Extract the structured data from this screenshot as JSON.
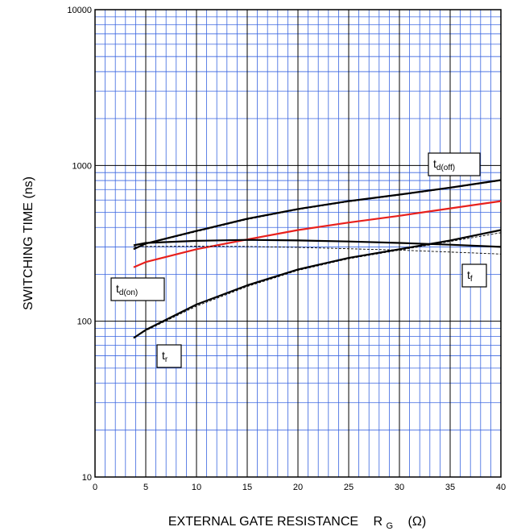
{
  "chart_data": {
    "type": "line",
    "xlabel": {
      "text": "EXTERNAL GATE RESISTANCE",
      "symbol": "R",
      "symbol_sub": "G",
      "unit": "(Ω)"
    },
    "ylabel": "SWITCHING TIME    (ns)",
    "xlim": [
      0,
      40
    ],
    "ylim": [
      10,
      10000
    ],
    "yscale": "log",
    "x_ticks": [
      "0",
      "5",
      "10",
      "15",
      "20",
      "25",
      "30",
      "35",
      "40"
    ],
    "y_ticks": [
      "10",
      "100",
      "1000",
      "10000"
    ],
    "grid": true,
    "colors": {
      "grid_minor": "#3a66e0",
      "grid_major": "#000000",
      "td_on": "#e8201c",
      "curve": "#000000"
    },
    "series": [
      {
        "name": "td(off)",
        "label_main": "t",
        "label_sub": "d(off)",
        "color": "#000000",
        "x": [
          3.8,
          5,
          10,
          15,
          20,
          25,
          30,
          35,
          40
        ],
        "y": [
          290,
          315,
          380,
          455,
          525,
          590,
          650,
          720,
          805
        ],
        "dashed_y": [
          290,
          313,
          376,
          450,
          520,
          585,
          645,
          715,
          800
        ]
      },
      {
        "name": "td(on)",
        "label_main": "t",
        "label_sub": "d(on)",
        "color": "#e8201c",
        "x": [
          3.8,
          5,
          10,
          15,
          20,
          25,
          30,
          35,
          40
        ],
        "y": [
          222,
          240,
          290,
          335,
          385,
          430,
          475,
          530,
          590
        ]
      },
      {
        "name": "tf",
        "label_main": "t",
        "label_sub": "f",
        "color": "#000000",
        "x": [
          3.8,
          5,
          10,
          15,
          20,
          25,
          30,
          35,
          40
        ],
        "y": [
          307,
          318,
          328,
          333,
          330,
          325,
          318,
          310,
          300
        ],
        "dashed_y": [
          300,
          302,
          303,
          302,
          298,
          292,
          286,
          278,
          270
        ]
      },
      {
        "name": "tr",
        "label_main": "t",
        "label_sub": "r",
        "color": "#000000",
        "x": [
          3.8,
          5,
          10,
          15,
          20,
          25,
          30,
          35,
          40
        ],
        "y": [
          78,
          88,
          128,
          170,
          215,
          255,
          290,
          330,
          385
        ],
        "dashed_y": [
          78,
          87,
          125,
          167,
          212,
          252,
          286,
          325,
          370
        ]
      }
    ]
  }
}
